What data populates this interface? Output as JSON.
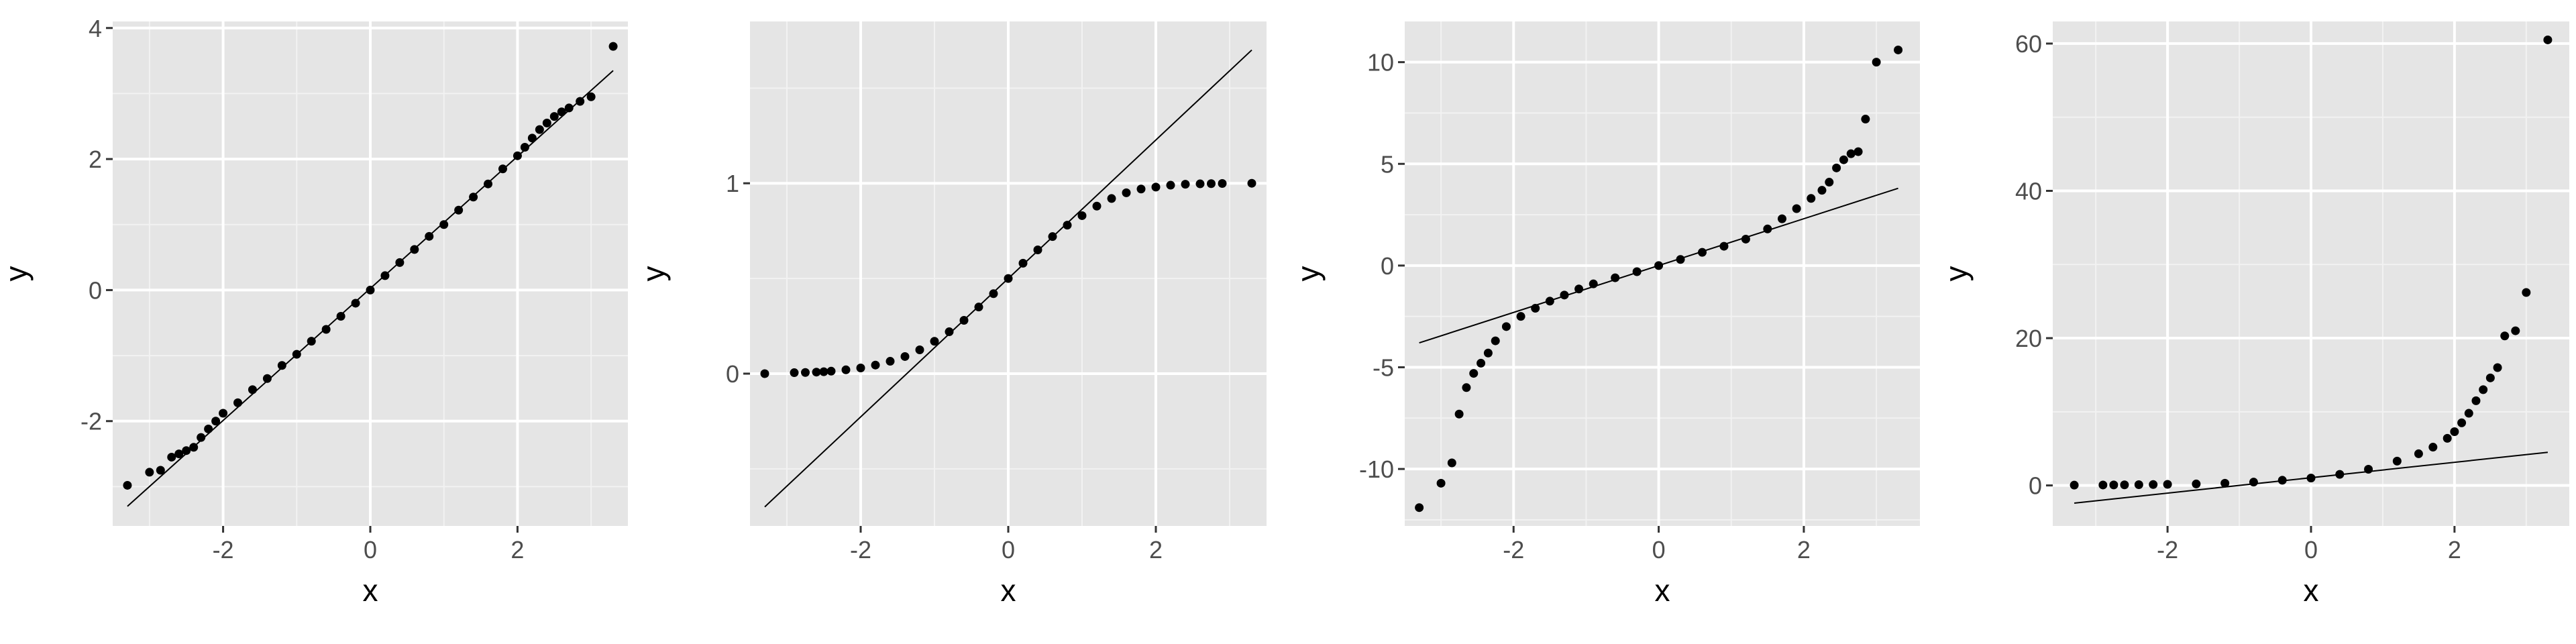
{
  "figure": {
    "background": "#ffffff",
    "panel_background": "#e5e5e5",
    "grid_major_color": "#ffffff",
    "grid_minor_color": "#f2f2f2",
    "point_color": "#000000",
    "line_color": "#000000"
  },
  "chart_data": [
    {
      "type": "scatter",
      "subtype": "qq-plot",
      "title": "",
      "xlabel": "x",
      "ylabel": "y",
      "xlim": [
        -3.5,
        3.5
      ],
      "ylim": [
        -3.6,
        4.1
      ],
      "xticks": [
        -2,
        0,
        2
      ],
      "xtick_labels": [
        "-2",
        "0",
        "2"
      ],
      "yticks": [
        -2,
        0,
        2,
        4
      ],
      "ytick_labels": [
        "-2",
        "0",
        "2",
        "4"
      ],
      "grid": true,
      "reference_line": {
        "x": [
          -3.3,
          3.3
        ],
        "y": [
          -3.3,
          3.35
        ]
      },
      "points": {
        "x": [
          -3.3,
          -3.0,
          -2.85,
          -2.7,
          -2.6,
          -2.5,
          -2.4,
          -2.3,
          -2.2,
          -2.1,
          -2.0,
          -1.8,
          -1.6,
          -1.4,
          -1.2,
          -1.0,
          -0.8,
          -0.6,
          -0.4,
          -0.2,
          0.0,
          0.2,
          0.4,
          0.6,
          0.8,
          1.0,
          1.2,
          1.4,
          1.6,
          1.8,
          2.0,
          2.1,
          2.2,
          2.3,
          2.4,
          2.5,
          2.6,
          2.7,
          2.85,
          3.0,
          3.3
        ],
        "y": [
          -2.98,
          -2.78,
          -2.75,
          -2.55,
          -2.5,
          -2.45,
          -2.4,
          -2.25,
          -2.12,
          -2.0,
          -1.88,
          -1.72,
          -1.52,
          -1.35,
          -1.15,
          -0.98,
          -0.78,
          -0.6,
          -0.4,
          -0.2,
          0.0,
          0.22,
          0.42,
          0.62,
          0.82,
          1.0,
          1.22,
          1.42,
          1.62,
          1.85,
          2.05,
          2.18,
          2.32,
          2.45,
          2.55,
          2.65,
          2.72,
          2.78,
          2.88,
          2.95,
          3.72
        ]
      }
    },
    {
      "type": "scatter",
      "subtype": "qq-plot",
      "title": "",
      "xlabel": "x",
      "ylabel": "y",
      "xlim": [
        -3.5,
        3.5
      ],
      "ylim": [
        -0.8,
        1.85
      ],
      "xticks": [
        -2,
        0,
        2
      ],
      "xtick_labels": [
        "-2",
        "0",
        "2"
      ],
      "yticks": [
        0,
        1
      ],
      "ytick_labels": [
        "0",
        "1"
      ],
      "grid": true,
      "reference_line": {
        "x": [
          -3.3,
          3.3
        ],
        "y": [
          -0.7,
          1.7
        ]
      },
      "points": {
        "x": [
          -3.3,
          -2.9,
          -2.75,
          -2.6,
          -2.5,
          -2.4,
          -2.2,
          -2.0,
          -1.8,
          -1.6,
          -1.4,
          -1.2,
          -1.0,
          -0.8,
          -0.6,
          -0.4,
          -0.2,
          0.0,
          0.2,
          0.4,
          0.6,
          0.8,
          1.0,
          1.2,
          1.4,
          1.6,
          1.8,
          2.0,
          2.2,
          2.4,
          2.6,
          2.75,
          2.9,
          3.3
        ],
        "y": [
          0.0,
          0.005,
          0.006,
          0.008,
          0.01,
          0.013,
          0.02,
          0.03,
          0.045,
          0.065,
          0.09,
          0.125,
          0.17,
          0.22,
          0.28,
          0.35,
          0.42,
          0.5,
          0.58,
          0.65,
          0.72,
          0.78,
          0.83,
          0.88,
          0.92,
          0.95,
          0.97,
          0.98,
          0.99,
          0.995,
          0.997,
          0.998,
          0.999,
          1.0
        ]
      }
    },
    {
      "type": "scatter",
      "subtype": "qq-plot",
      "title": "",
      "xlabel": "x",
      "ylabel": "y",
      "xlim": [
        -3.5,
        3.6
      ],
      "ylim": [
        -12.8,
        12.0
      ],
      "xticks": [
        -2,
        0,
        2
      ],
      "xtick_labels": [
        "-2",
        "0",
        "2"
      ],
      "yticks": [
        -10,
        -5,
        0,
        5,
        10
      ],
      "ytick_labels": [
        "-10",
        "-5",
        "0",
        "5",
        "10"
      ],
      "grid": true,
      "reference_line": {
        "x": [
          -3.3,
          3.3
        ],
        "y": [
          -3.8,
          3.8
        ]
      },
      "points": {
        "x": [
          -3.3,
          -3.0,
          -2.85,
          -2.75,
          -2.65,
          -2.55,
          -2.45,
          -2.35,
          -2.25,
          -2.1,
          -1.9,
          -1.7,
          -1.5,
          -1.3,
          -1.1,
          -0.9,
          -0.6,
          -0.3,
          0.0,
          0.3,
          0.6,
          0.9,
          1.2,
          1.5,
          1.7,
          1.9,
          2.1,
          2.25,
          2.35,
          2.45,
          2.55,
          2.65,
          2.75,
          2.85,
          3.0,
          3.3
        ],
        "y": [
          -11.9,
          -10.7,
          -9.7,
          -7.3,
          -6.0,
          -5.3,
          -4.8,
          -4.3,
          -3.7,
          -3.0,
          -2.5,
          -2.1,
          -1.75,
          -1.45,
          -1.15,
          -0.9,
          -0.6,
          -0.3,
          0.0,
          0.3,
          0.65,
          0.95,
          1.3,
          1.8,
          2.3,
          2.8,
          3.3,
          3.7,
          4.1,
          4.8,
          5.2,
          5.5,
          5.6,
          7.2,
          10.0,
          10.6
        ]
      }
    },
    {
      "type": "scatter",
      "subtype": "qq-plot",
      "title": "",
      "xlabel": "x",
      "ylabel": "y",
      "xlim": [
        -3.6,
        3.6
      ],
      "ylim": [
        -5.5,
        63.0
      ],
      "xticks": [
        -2,
        0,
        2
      ],
      "xtick_labels": [
        "-2",
        "0",
        "2"
      ],
      "yticks": [
        0,
        20,
        40,
        60
      ],
      "ytick_labels": [
        "0",
        "20",
        "40",
        "60"
      ],
      "grid": true,
      "reference_line": {
        "x": [
          -3.3,
          3.3
        ],
        "y": [
          -2.4,
          4.5
        ]
      },
      "points": {
        "x": [
          -3.3,
          -2.9,
          -2.75,
          -2.6,
          -2.4,
          -2.2,
          -2.0,
          -1.6,
          -1.2,
          -0.8,
          -0.4,
          0.0,
          0.4,
          0.8,
          1.2,
          1.5,
          1.7,
          1.9,
          2.0,
          2.1,
          2.2,
          2.3,
          2.4,
          2.5,
          2.6,
          2.7,
          2.85,
          3.0,
          3.3
        ],
        "y": [
          0.04,
          0.06,
          0.07,
          0.08,
          0.1,
          0.12,
          0.15,
          0.2,
          0.3,
          0.45,
          0.7,
          1.0,
          1.5,
          2.2,
          3.3,
          4.3,
          5.2,
          6.4,
          7.3,
          8.5,
          9.8,
          11.5,
          13.0,
          14.6,
          16.0,
          20.3,
          21.0,
          26.2,
          60.5
        ]
      }
    }
  ]
}
